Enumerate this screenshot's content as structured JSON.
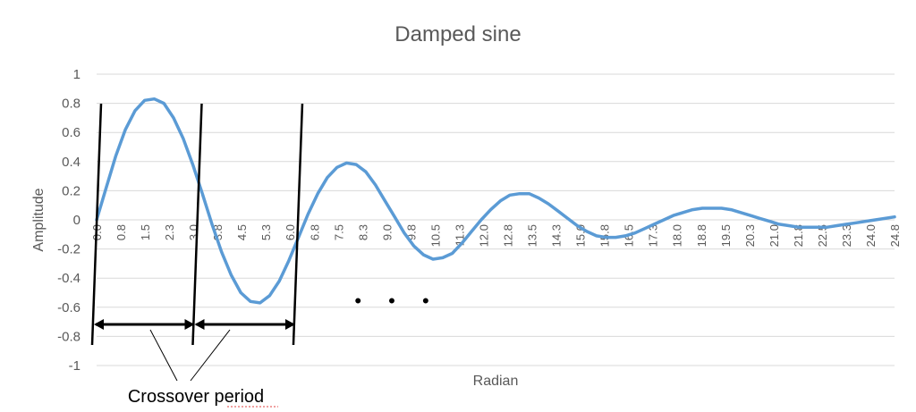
{
  "chart_data": {
    "type": "line",
    "title": "Damped sine",
    "xlabel": "Radian",
    "ylabel": "Amplitude",
    "ylim": [
      -1,
      1
    ],
    "yticks": [
      1,
      0.8,
      0.6,
      0.4,
      0.2,
      0,
      -0.2,
      -0.4,
      -0.6,
      -0.8,
      -1
    ],
    "ytick_labels": [
      "1",
      "0.8",
      "0.6",
      "0.4",
      "0.2",
      "0",
      "-0.2",
      "-0.4",
      "-0.6",
      "-0.8",
      "-1"
    ],
    "xtick_labels": [
      "0.0",
      "0.8",
      "1.5",
      "2.3",
      "3.0",
      "3.8",
      "4.5",
      "5.3",
      "6.0",
      "6.8",
      "7.5",
      "8.3",
      "9.0",
      "9.8",
      "10.5",
      "11.3",
      "12.0",
      "12.8",
      "13.5",
      "14.3",
      "15.0",
      "15.8",
      "16.5",
      "17.3",
      "18.0",
      "18.8",
      "19.5",
      "20.3",
      "21.0",
      "21.8",
      "22.5",
      "23.3",
      "24.0",
      "24.8"
    ],
    "grid": true,
    "legend": "none",
    "series": [
      {
        "color": "#5b9bd5",
        "x": [
          0.0,
          0.3,
          0.6,
          0.9,
          1.2,
          1.5,
          1.8,
          2.1,
          2.4,
          2.7,
          3.0,
          3.3,
          3.6,
          3.9,
          4.2,
          4.5,
          4.8,
          5.1,
          5.4,
          5.7,
          6.0,
          6.3,
          6.6,
          6.9,
          7.2,
          7.5,
          7.8,
          8.1,
          8.4,
          8.7,
          9.0,
          9.3,
          9.6,
          9.9,
          10.2,
          10.5,
          10.8,
          11.1,
          11.4,
          11.7,
          12.0,
          12.3,
          12.6,
          12.9,
          13.2,
          13.5,
          13.8,
          14.1,
          14.4,
          14.7,
          15.0,
          15.3,
          15.6,
          15.9,
          16.2,
          16.5,
          16.8,
          17.1,
          17.4,
          17.7,
          18.0,
          18.3,
          18.6,
          18.9,
          19.2,
          19.5,
          19.8,
          20.1,
          20.4,
          20.7,
          21.0,
          21.3,
          21.6,
          21.9,
          22.2,
          22.5,
          22.8,
          23.1,
          23.4,
          23.7,
          24.0,
          24.3,
          24.6,
          24.9
        ],
        "y": [
          0.0,
          0.22,
          0.44,
          0.62,
          0.75,
          0.82,
          0.83,
          0.8,
          0.7,
          0.56,
          0.38,
          0.18,
          -0.03,
          -0.22,
          -0.38,
          -0.5,
          -0.56,
          -0.57,
          -0.52,
          -0.42,
          -0.28,
          -0.12,
          0.04,
          0.18,
          0.29,
          0.36,
          0.39,
          0.38,
          0.33,
          0.24,
          0.13,
          0.02,
          -0.09,
          -0.18,
          -0.24,
          -0.27,
          -0.26,
          -0.23,
          -0.16,
          -0.08,
          0.0,
          0.07,
          0.13,
          0.17,
          0.18,
          0.18,
          0.15,
          0.11,
          0.06,
          0.01,
          -0.04,
          -0.08,
          -0.11,
          -0.12,
          -0.12,
          -0.11,
          -0.09,
          -0.06,
          -0.03,
          0.0,
          0.03,
          0.05,
          0.07,
          0.08,
          0.08,
          0.08,
          0.07,
          0.05,
          0.03,
          0.01,
          -0.01,
          -0.03,
          -0.04,
          -0.05,
          -0.05,
          -0.05,
          -0.05,
          -0.04,
          -0.03,
          -0.02,
          -0.01,
          0.0,
          0.01,
          0.02
        ]
      }
    ],
    "annotations": {
      "crossover_text": "Crossover period",
      "ellipsis": "• • •",
      "crossover_lines_x": [
        0.0,
        3.14,
        6.28
      ]
    }
  }
}
